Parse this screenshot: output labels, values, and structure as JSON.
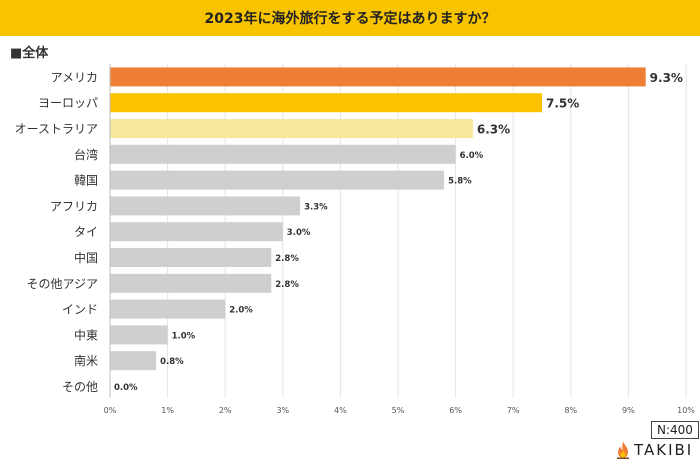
{
  "header": {
    "title": "2023年に海外旅行をする予定はありますか？"
  },
  "subtitle": "■全体",
  "sample_size": "N:400",
  "brand": {
    "name": "TAKIBI",
    "icon": "flame-icon"
  },
  "colors": {
    "title_bg": "#f8c400",
    "rank1": "#ef7d33",
    "rank2": "#fbc200",
    "rank3": "#f6e79a",
    "other": "#d0cfcf"
  },
  "chart_data": {
    "type": "bar",
    "orientation": "horizontal",
    "categories": [
      "アメリカ",
      "ヨーロッパ",
      "オーストラリア",
      "台湾",
      "韓国",
      "アフリカ",
      "タイ",
      "中国",
      "その他アジア",
      "インド",
      "中東",
      "南米",
      "その他"
    ],
    "values": [
      9.3,
      7.5,
      6.3,
      6.0,
      5.8,
      3.3,
      3.0,
      2.8,
      2.8,
      2.0,
      1.0,
      0.8,
      0.0
    ],
    "value_labels": [
      "9.3%",
      "7.5%",
      "6.3%",
      "6.0%",
      "5.8%",
      "3.3%",
      "3.0%",
      "2.8%",
      "2.8%",
      "2.0%",
      "1.0%",
      "0.8%",
      "0.0%"
    ],
    "xlim": [
      0,
      10
    ],
    "x_ticks": [
      "0%",
      "1%",
      "2%",
      "3%",
      "4%",
      "5%",
      "6%",
      "7%",
      "8%",
      "9%",
      "10%"
    ],
    "grid": true,
    "title": "2023年に海外旅行をする予定はありますか？"
  }
}
